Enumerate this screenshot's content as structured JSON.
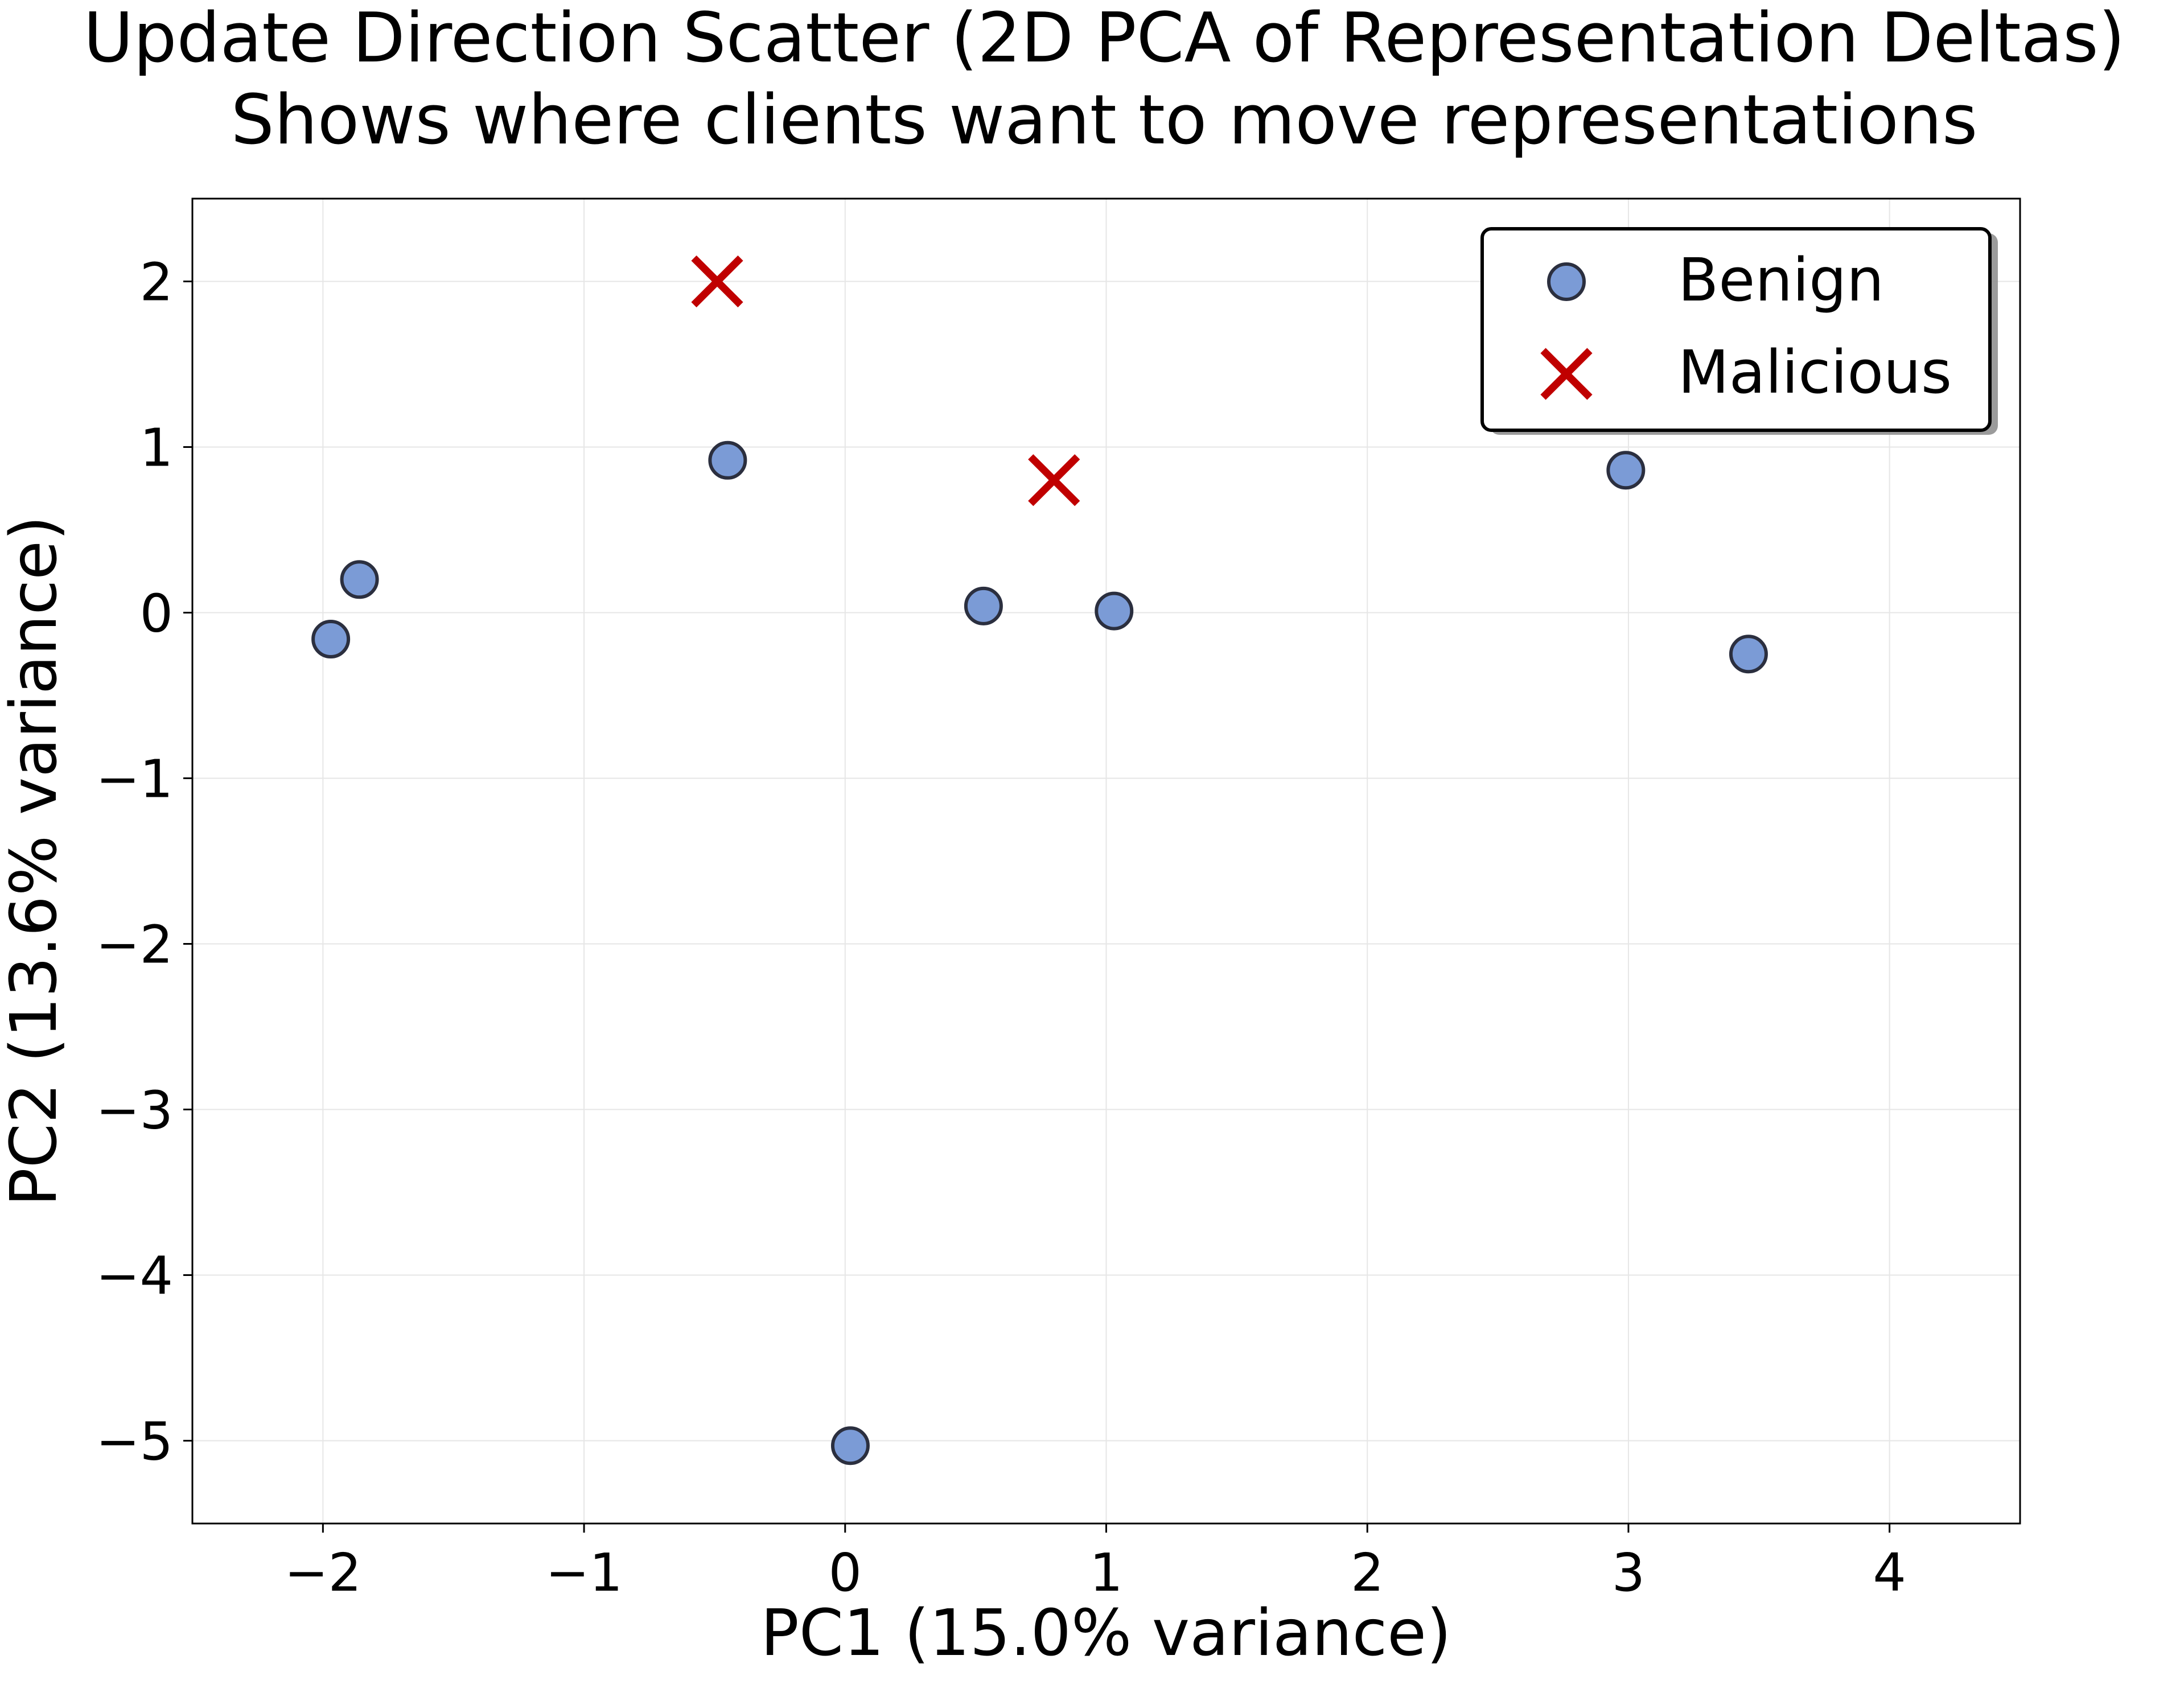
{
  "chart_data": {
    "type": "scatter",
    "title": "Update Direction Scatter (2D PCA of Representation Deltas)",
    "subtitle": "Shows where clients want to move representations",
    "xlabel": "PC1 (15.0% variance)",
    "ylabel": "PC2 (13.6% variance)",
    "xlim": [
      -2.5,
      4.5
    ],
    "ylim": [
      -5.5,
      2.5
    ],
    "xticks": [
      -2,
      -1,
      0,
      1,
      2,
      3,
      4
    ],
    "yticks": [
      -5,
      -4,
      -3,
      -2,
      -1,
      0,
      1,
      2
    ],
    "grid": true,
    "legend_position": "top-right",
    "series": [
      {
        "name": "Benign",
        "marker": "circle",
        "color": "#7b9bd6",
        "edge_color": "#2b2f3f",
        "points": [
          {
            "x": -1.97,
            "y": -0.16
          },
          {
            "x": -1.86,
            "y": 0.2
          },
          {
            "x": -0.45,
            "y": 0.92
          },
          {
            "x": 0.02,
            "y": -5.03
          },
          {
            "x": 0.53,
            "y": 0.04
          },
          {
            "x": 1.03,
            "y": 0.01
          },
          {
            "x": 2.99,
            "y": 0.86
          },
          {
            "x": 3.46,
            "y": -0.25
          }
        ]
      },
      {
        "name": "Malicious",
        "marker": "x",
        "color": "#c00000",
        "points": [
          {
            "x": -0.49,
            "y": 2.0
          },
          {
            "x": 0.8,
            "y": 0.8
          }
        ]
      }
    ]
  }
}
